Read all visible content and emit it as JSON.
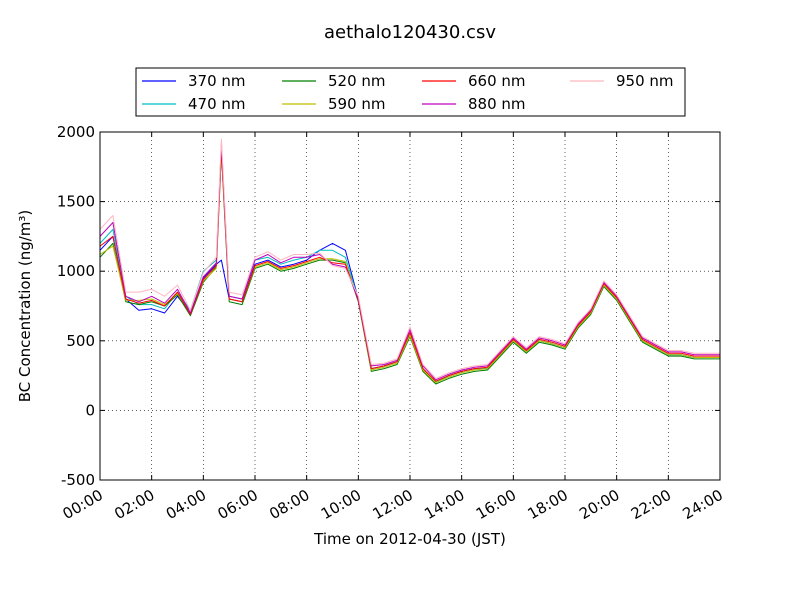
{
  "chart_data": {
    "type": "line",
    "title": "aethalo120430.csv",
    "xlabel": "Time on 2012-04-30 (JST)",
    "ylabel": "BC Concentration (ng/m³)",
    "xlim": [
      "2012-04-30 00:00",
      "2012-05-01 00:00"
    ],
    "ylim": [
      -500,
      2000
    ],
    "grid": true,
    "legend_position": "top",
    "x_ticks": [
      "00:00",
      "02:00",
      "04:00",
      "06:00",
      "08:00",
      "10:00",
      "12:00",
      "14:00",
      "16:00",
      "18:00",
      "20:00",
      "22:00",
      "24:00"
    ],
    "y_ticks": [
      "-500",
      "0",
      "500",
      "1000",
      "1500",
      "2000"
    ],
    "series": [
      {
        "name": "370 nm",
        "color": "#0000ff"
      },
      {
        "name": "470 nm",
        "color": "#00bfbf"
      },
      {
        "name": "520 nm",
        "color": "#008000"
      },
      {
        "name": "590 nm",
        "color": "#bfbf00"
      },
      {
        "name": "660 nm",
        "color": "#ff0000"
      },
      {
        "name": "880 nm",
        "color": "#bf00bf"
      },
      {
        "name": "950 nm",
        "color": "#ffb6c1"
      }
    ],
    "x_hours": [
      0,
      0.5,
      1,
      1.5,
      2,
      2.5,
      3,
      3.5,
      4,
      4.5,
      4.7,
      5,
      5.5,
      6,
      6.5,
      7,
      7.5,
      8,
      8.5,
      9,
      9.5,
      10,
      10.5,
      11,
      11.5,
      12,
      12.5,
      13,
      13.5,
      14,
      14.5,
      15,
      15.5,
      16,
      16.5,
      17,
      17.5,
      18,
      18.5,
      19,
      19.5,
      20,
      20.5,
      21,
      21.5,
      22,
      22.5,
      23,
      23.5,
      24
    ],
    "values": {
      "370 nm": [
        1150,
        1250,
        800,
        720,
        730,
        700,
        820,
        700,
        950,
        1050,
        1080,
        800,
        780,
        1050,
        1080,
        1030,
        1050,
        1080,
        1150,
        1200,
        1150,
        800,
        300,
        320,
        350,
        550,
        300,
        200,
        250,
        280,
        300,
        300,
        400,
        500,
        420,
        500,
        480,
        450,
        600,
        700,
        900,
        800,
        650,
        500,
        450,
        400,
        400,
        380,
        380,
        380
      ],
      "470 nm": [
        1200,
        1300,
        820,
        760,
        760,
        730,
        850,
        720,
        1000,
        1080,
        1900,
        820,
        800,
        1080,
        1100,
        1050,
        1080,
        1100,
        1150,
        1150,
        1100,
        800,
        300,
        320,
        350,
        550,
        300,
        200,
        250,
        280,
        300,
        300,
        400,
        500,
        420,
        500,
        480,
        450,
        600,
        700,
        900,
        800,
        650,
        500,
        450,
        400,
        400,
        380,
        380,
        380
      ],
      "520 nm": [
        1100,
        1200,
        780,
        760,
        780,
        750,
        830,
        680,
        920,
        1030,
        1850,
        780,
        760,
        1020,
        1050,
        1000,
        1020,
        1050,
        1080,
        1080,
        1060,
        780,
        280,
        300,
        330,
        530,
        280,
        190,
        230,
        260,
        280,
        290,
        390,
        490,
        410,
        490,
        470,
        440,
        590,
        690,
        890,
        790,
        640,
        490,
        440,
        390,
        390,
        370,
        370,
        370
      ],
      "590 nm": [
        1120,
        1180,
        790,
        790,
        800,
        760,
        840,
        700,
        930,
        1020,
        1860,
        800,
        780,
        1030,
        1060,
        1010,
        1030,
        1060,
        1090,
        1090,
        1070,
        790,
        290,
        310,
        340,
        540,
        290,
        200,
        240,
        270,
        290,
        300,
        400,
        500,
        420,
        500,
        480,
        450,
        600,
        700,
        900,
        800,
        650,
        500,
        450,
        400,
        400,
        380,
        380,
        380
      ],
      "660 nm": [
        1180,
        1250,
        800,
        770,
        790,
        750,
        850,
        690,
        940,
        1040,
        1880,
        800,
        780,
        1040,
        1070,
        1020,
        1040,
        1070,
        1100,
        1060,
        1050,
        790,
        300,
        320,
        350,
        560,
        300,
        210,
        250,
        280,
        300,
        310,
        410,
        510,
        430,
        510,
        490,
        460,
        610,
        710,
        910,
        810,
        660,
        510,
        460,
        410,
        410,
        390,
        390,
        390
      ],
      "880 nm": [
        1250,
        1350,
        820,
        780,
        820,
        770,
        870,
        700,
        960,
        1060,
        1920,
        820,
        800,
        1080,
        1120,
        1060,
        1100,
        1100,
        1120,
        1050,
        1030,
        800,
        320,
        330,
        360,
        580,
        320,
        220,
        260,
        290,
        310,
        320,
        420,
        520,
        440,
        520,
        500,
        470,
        620,
        720,
        920,
        820,
        670,
        520,
        470,
        420,
        420,
        400,
        400,
        400
      ],
      "950 nm": [
        1300,
        1400,
        850,
        850,
        870,
        820,
        900,
        720,
        990,
        1100,
        1950,
        850,
        830,
        1100,
        1140,
        1080,
        1120,
        1120,
        1130,
        1040,
        1020,
        820,
        330,
        340,
        370,
        600,
        330,
        230,
        270,
        300,
        320,
        330,
        430,
        530,
        450,
        530,
        510,
        480,
        630,
        730,
        930,
        830,
        680,
        530,
        480,
        430,
        430,
        410,
        410,
        410
      ]
    }
  }
}
